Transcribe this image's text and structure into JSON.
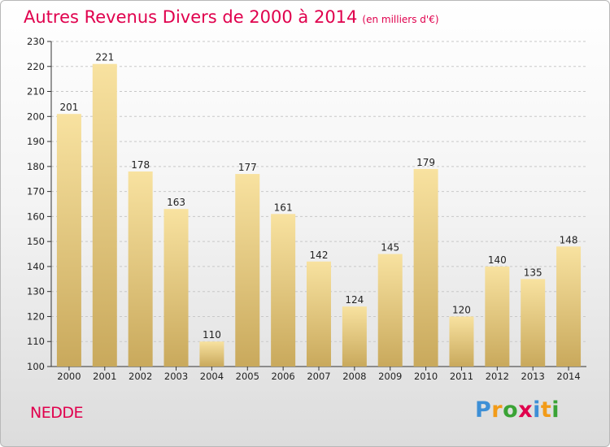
{
  "header": {
    "title": "Autres Revenus Divers de 2000 à 2014",
    "subtitle": "(en milliers d'€)"
  },
  "footer": {
    "commune": "NEDDE",
    "logo": {
      "letters": [
        "P",
        "r",
        "o",
        "x",
        "i",
        "t",
        "i"
      ],
      "colors": [
        "#3d8fd6",
        "#f29b18",
        "#3aa335",
        "#e0004d",
        "#3d8fd6",
        "#f29b18",
        "#3aa335"
      ]
    }
  },
  "chart_data": {
    "type": "bar",
    "categories": [
      "2000",
      "2001",
      "2002",
      "2003",
      "2004",
      "2005",
      "2006",
      "2007",
      "2008",
      "2009",
      "2010",
      "2011",
      "2012",
      "2013",
      "2014"
    ],
    "values": [
      201,
      221,
      178,
      163,
      110,
      177,
      161,
      142,
      124,
      145,
      179,
      120,
      140,
      135,
      148
    ],
    "ylim": [
      100,
      230
    ],
    "yticks": [
      100,
      110,
      120,
      130,
      140,
      150,
      160,
      170,
      180,
      190,
      200,
      210,
      220,
      230
    ],
    "grid": "horizontal dashed",
    "colors": {
      "bar_top": "#f8e2a0",
      "bar_bottom": "#c9a95c",
      "title": "#e0004d"
    }
  }
}
